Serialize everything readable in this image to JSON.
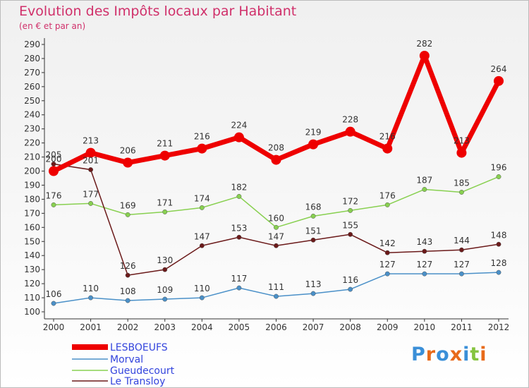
{
  "chart_data": {
    "type": "line",
    "title": "Evolution des Impôts locaux par Habitant",
    "subtitle": "(en € et par an)",
    "xlabel": "",
    "ylabel": "",
    "categories": [
      "2000",
      "2001",
      "2002",
      "2003",
      "2004",
      "2005",
      "2006",
      "2007",
      "2008",
      "2009",
      "2010",
      "2011",
      "2012"
    ],
    "y_ticks": [
      100,
      110,
      120,
      130,
      140,
      150,
      160,
      170,
      180,
      190,
      200,
      210,
      220,
      230,
      240,
      250,
      260,
      270,
      280,
      290
    ],
    "ylim": [
      97,
      292
    ],
    "grid": false,
    "legend_position": "bottom-left",
    "series": [
      {
        "name": "LESBOEUFS",
        "color": "#ee0000",
        "values": [
          200,
          213,
          206,
          211,
          216,
          224,
          208,
          219,
          228,
          216,
          282,
          213,
          264
        ],
        "labels": [
          "200",
          "213",
          "206",
          "211",
          "216",
          "224",
          "208",
          "219",
          "228",
          "216",
          "282",
          "213",
          "264"
        ]
      },
      {
        "name": "Morval",
        "color": "#4a90c8",
        "values": [
          106,
          110,
          108,
          109,
          110,
          117,
          111,
          113,
          116,
          127,
          127,
          127,
          128
        ],
        "labels": [
          "106",
          "110",
          "108",
          "109",
          "110",
          "117",
          "111",
          "113",
          "116",
          "127",
          "127",
          "127",
          "128"
        ]
      },
      {
        "name": "Gueudecourt",
        "color": "#88d050",
        "values": [
          176,
          177,
          169,
          171,
          174,
          182,
          160,
          168,
          172,
          176,
          187,
          185,
          196
        ],
        "labels": [
          "176",
          "177",
          "169",
          "171",
          "174",
          "182",
          "160",
          "168",
          "172",
          "176",
          "187",
          "185",
          "196"
        ]
      },
      {
        "name": "Le Transloy",
        "color": "#6b1a1a",
        "values": [
          205,
          201,
          126,
          130,
          147,
          153,
          147,
          151,
          155,
          142,
          143,
          144,
          148
        ],
        "labels": [
          "205",
          "201",
          "126",
          "130",
          "147",
          "153",
          "147",
          "151",
          "155",
          "142",
          "143",
          "144",
          "148"
        ]
      }
    ]
  },
  "logo": {
    "text": "Proxiti",
    "letters": [
      "P",
      "r",
      "o",
      "x",
      "i",
      "t",
      "i"
    ],
    "colors": [
      "#3a8fd8",
      "#e86a1a",
      "#3a8fd8",
      "#e86a1a",
      "#3a8fd8",
      "#86c440",
      "#e86a1a"
    ]
  }
}
